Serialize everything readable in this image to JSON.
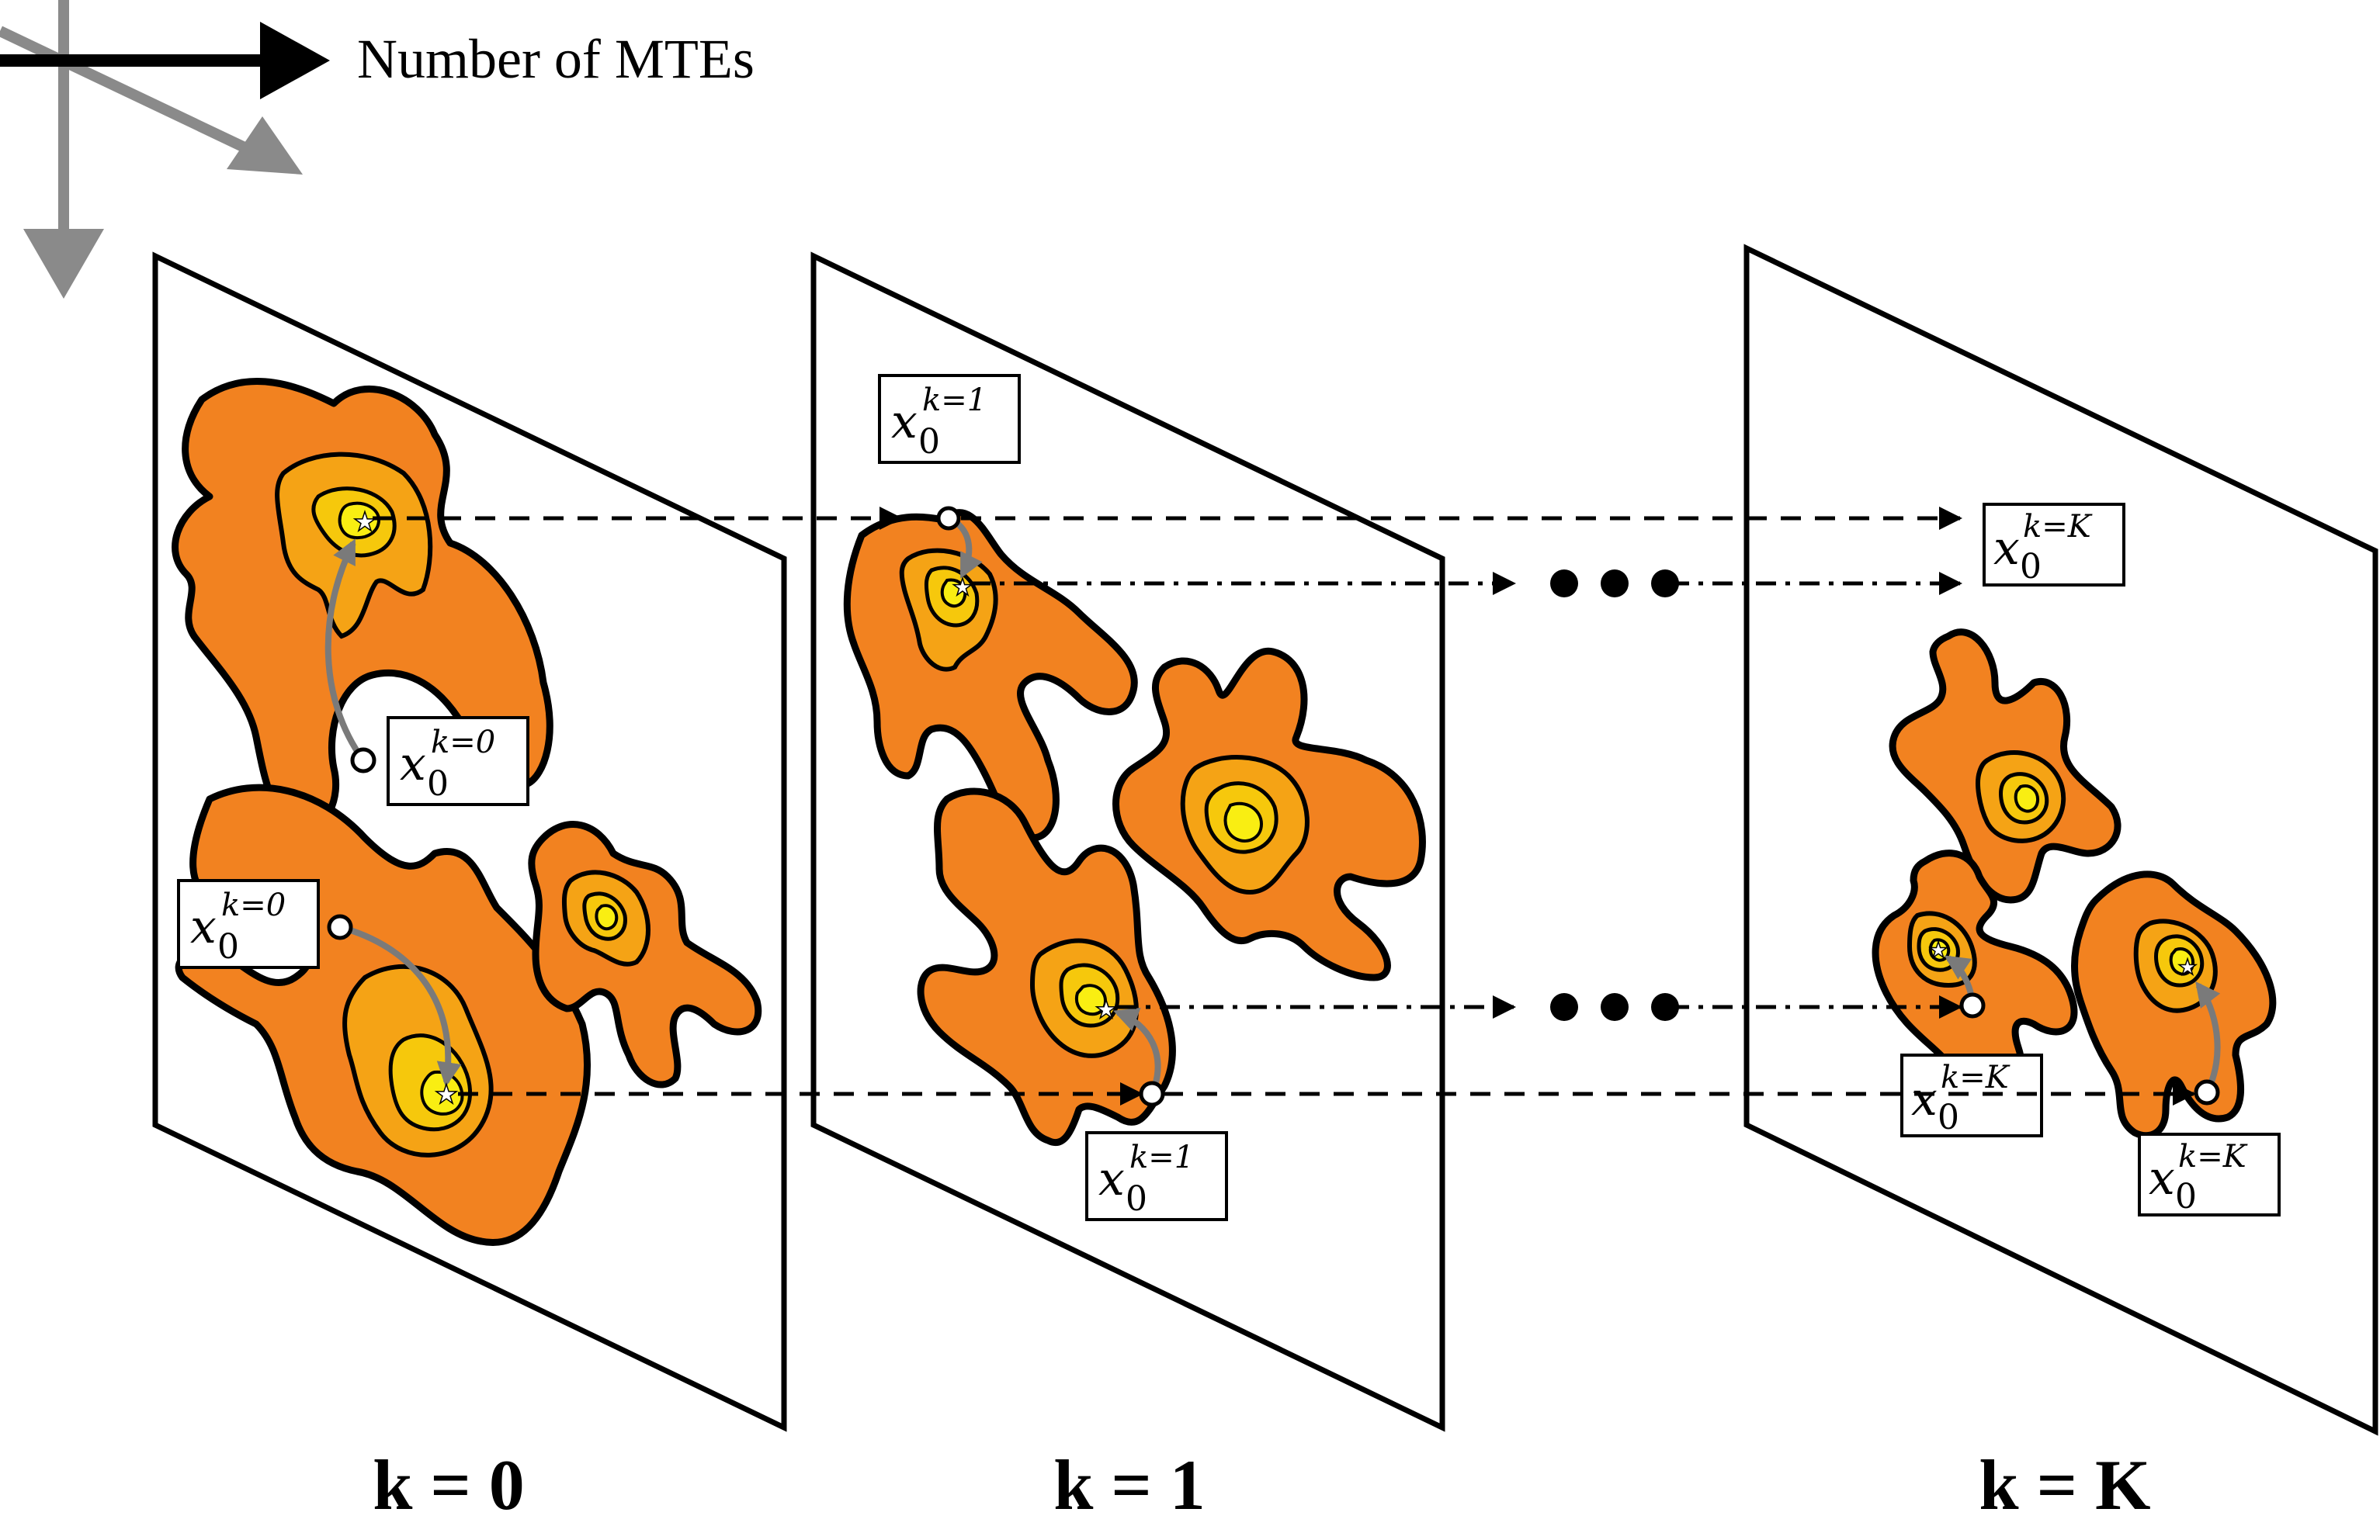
{
  "axis": {
    "main_label": "Number of MTEs"
  },
  "panels": [
    {
      "label": "k = 0"
    },
    {
      "label": "k = 1"
    },
    {
      "label": "k = K"
    }
  ],
  "point_label": {
    "base": "x",
    "subscript": "0",
    "sup_k0": "k=0",
    "sup_k1": "k=1",
    "sup_kK": "k=K"
  },
  "colors": {
    "outer": "#F28220",
    "mid": "#F5A315",
    "inner": "#F6C80C",
    "core": "#F9EE12",
    "arrow_grey": "#7a7a7a",
    "line": "#000000"
  },
  "icons": {
    "minimum_marker": "star-icon",
    "start_marker": "circle-icon",
    "continuation": "ellipsis-dots-icon"
  }
}
